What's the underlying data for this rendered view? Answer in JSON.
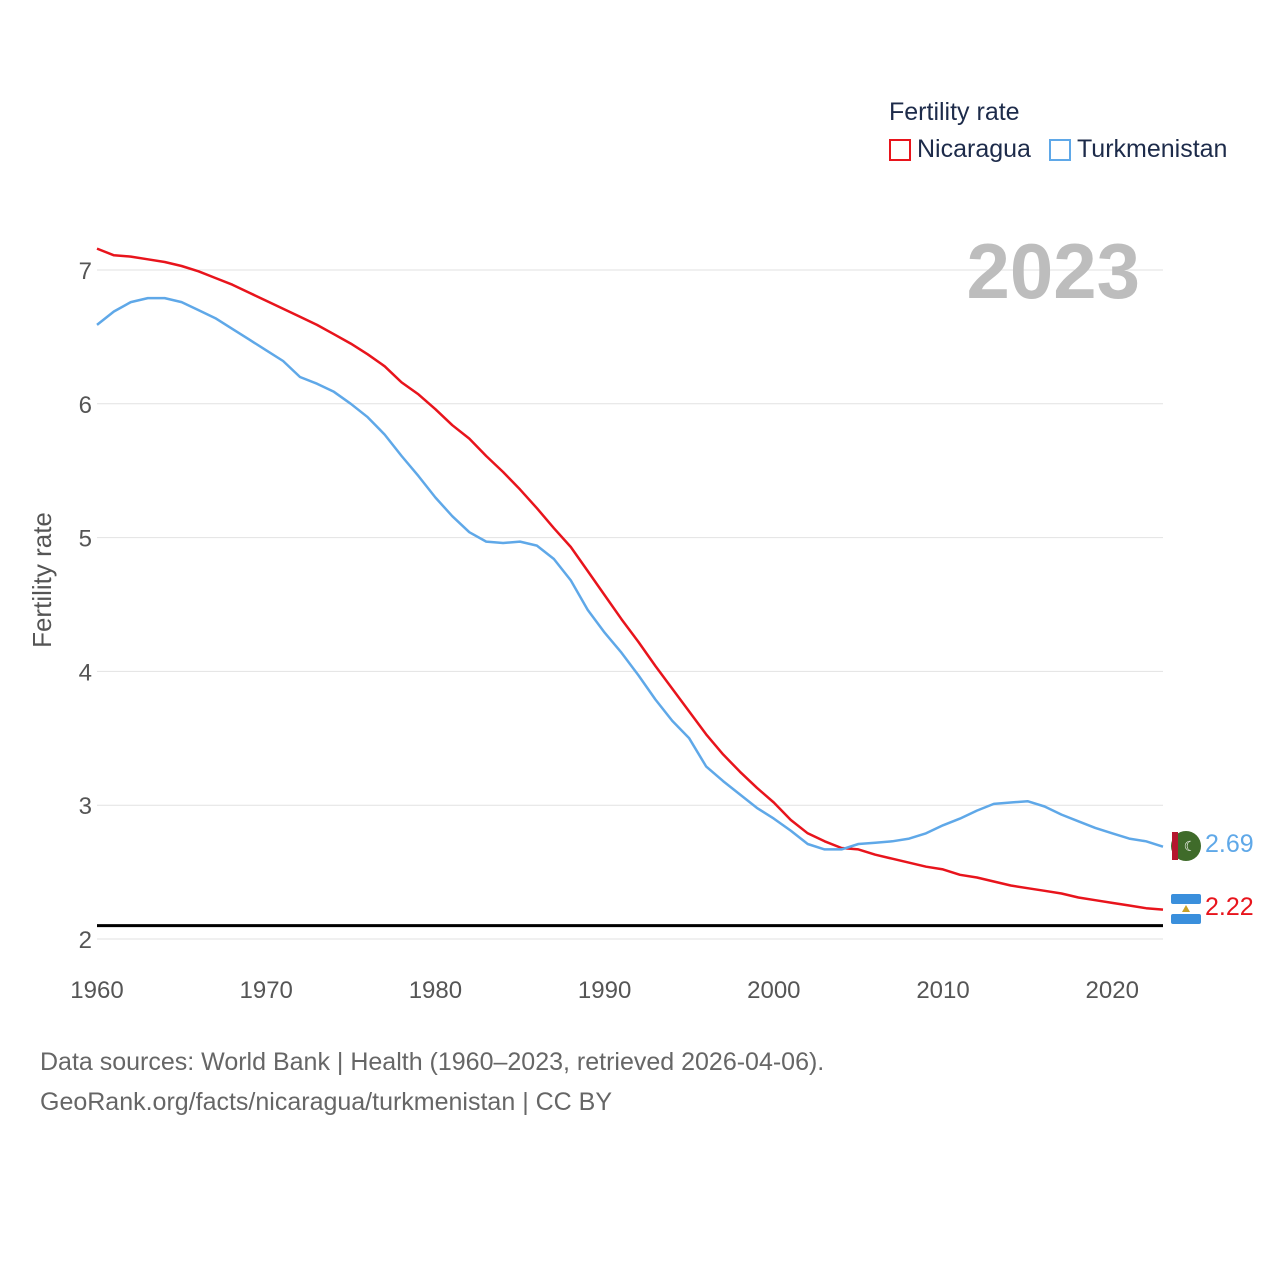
{
  "chart_data": {
    "type": "line",
    "ylabel": "Fertility rate",
    "xlabel": "",
    "year_label": "2023",
    "xlim": [
      1960,
      2023
    ],
    "ylim": [
      2,
      7.3
    ],
    "x_ticks": [
      1960,
      1970,
      1980,
      1990,
      2000,
      2010,
      2020
    ],
    "y_ticks": [
      2,
      3,
      4,
      5,
      6,
      7
    ],
    "reference_line": 2.1,
    "legend": {
      "title": "Fertility rate",
      "items": [
        "Nicaragua",
        "Turkmenistan"
      ]
    },
    "series": [
      {
        "name": "Nicaragua",
        "color": "#e8141c",
        "end_label": "2.22",
        "x": [
          1960,
          1961,
          1962,
          1963,
          1964,
          1965,
          1966,
          1967,
          1968,
          1969,
          1970,
          1971,
          1972,
          1973,
          1974,
          1975,
          1976,
          1977,
          1978,
          1979,
          1980,
          1981,
          1982,
          1983,
          1984,
          1985,
          1986,
          1987,
          1988,
          1989,
          1990,
          1991,
          1992,
          1993,
          1994,
          1995,
          1996,
          1997,
          1998,
          1999,
          2000,
          2001,
          2002,
          2003,
          2004,
          2005,
          2006,
          2007,
          2008,
          2009,
          2010,
          2011,
          2012,
          2013,
          2014,
          2015,
          2016,
          2017,
          2018,
          2019,
          2020,
          2021,
          2022,
          2023
        ],
        "values": [
          7.16,
          7.11,
          7.1,
          7.08,
          7.06,
          7.03,
          6.99,
          6.94,
          6.89,
          6.83,
          6.77,
          6.71,
          6.65,
          6.59,
          6.52,
          6.45,
          6.37,
          6.28,
          6.16,
          6.07,
          5.96,
          5.84,
          5.74,
          5.61,
          5.49,
          5.36,
          5.22,
          5.07,
          4.93,
          4.75,
          4.57,
          4.39,
          4.22,
          4.04,
          3.87,
          3.7,
          3.53,
          3.38,
          3.25,
          3.13,
          3.02,
          2.89,
          2.79,
          2.73,
          2.68,
          2.67,
          2.63,
          2.6,
          2.57,
          2.54,
          2.52,
          2.48,
          2.46,
          2.43,
          2.4,
          2.38,
          2.36,
          2.34,
          2.31,
          2.29,
          2.27,
          2.25,
          2.23,
          2.22
        ]
      },
      {
        "name": "Turkmenistan",
        "color": "#5fa8e8",
        "end_label": "2.69",
        "x": [
          1960,
          1961,
          1962,
          1963,
          1964,
          1965,
          1966,
          1967,
          1968,
          1969,
          1970,
          1971,
          1972,
          1973,
          1974,
          1975,
          1976,
          1977,
          1978,
          1979,
          1980,
          1981,
          1982,
          1983,
          1984,
          1985,
          1986,
          1987,
          1988,
          1989,
          1990,
          1991,
          1992,
          1993,
          1994,
          1995,
          1996,
          1997,
          1998,
          1999,
          2000,
          2001,
          2002,
          2003,
          2004,
          2005,
          2006,
          2007,
          2008,
          2009,
          2010,
          2011,
          2012,
          2013,
          2014,
          2015,
          2016,
          2017,
          2018,
          2019,
          2020,
          2021,
          2022,
          2023
        ],
        "values": [
          6.59,
          6.69,
          6.76,
          6.79,
          6.79,
          6.76,
          6.7,
          6.64,
          6.56,
          6.48,
          6.4,
          6.32,
          6.2,
          6.15,
          6.09,
          6.0,
          5.9,
          5.77,
          5.61,
          5.46,
          5.3,
          5.16,
          5.04,
          4.97,
          4.96,
          4.97,
          4.94,
          4.84,
          4.68,
          4.46,
          4.29,
          4.14,
          3.97,
          3.79,
          3.63,
          3.5,
          3.29,
          3.18,
          3.08,
          2.98,
          2.9,
          2.81,
          2.71,
          2.67,
          2.67,
          2.71,
          2.72,
          2.73,
          2.75,
          2.79,
          2.85,
          2.9,
          2.96,
          3.01,
          3.02,
          3.03,
          2.99,
          2.93,
          2.88,
          2.83,
          2.79,
          2.75,
          2.73,
          2.69
        ]
      }
    ]
  },
  "footer": {
    "line1": "Data sources: World Bank | Health (1960–2023, retrieved 2026-04-06).",
    "line2": "GeoRank.org/facts/nicaragua/turkmenistan | CC BY"
  }
}
